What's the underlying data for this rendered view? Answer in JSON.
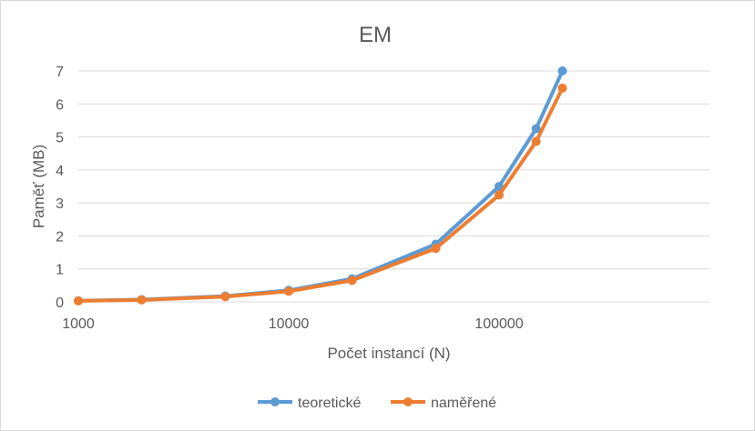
{
  "chart_data": {
    "type": "line",
    "title": "EM",
    "xlabel": "Počet instancí (N)",
    "ylabel": "Paměť (MB)",
    "x_scale": "log",
    "xlim": [
      1000,
      1000000
    ],
    "ylim": [
      0,
      7
    ],
    "x_ticks": [
      "1000",
      "10000",
      "100000"
    ],
    "y_ticks": [
      "0",
      "1",
      "2",
      "3",
      "4",
      "5",
      "6",
      "7"
    ],
    "grid": "horizontal",
    "legend_position": "bottom",
    "x": [
      1000,
      2000,
      5000,
      10000,
      20000,
      50000,
      100000,
      150000,
      200000
    ],
    "series": [
      {
        "name": "teoretické",
        "color": "#5b9bd5",
        "values": [
          0.035,
          0.07,
          0.175,
          0.35,
          0.7,
          1.75,
          3.5,
          5.25,
          7.0
        ]
      },
      {
        "name": "naměřené",
        "color": "#ed7d31",
        "values": [
          0.03,
          0.06,
          0.16,
          0.32,
          0.65,
          1.62,
          3.24,
          4.86,
          6.48
        ]
      }
    ]
  }
}
